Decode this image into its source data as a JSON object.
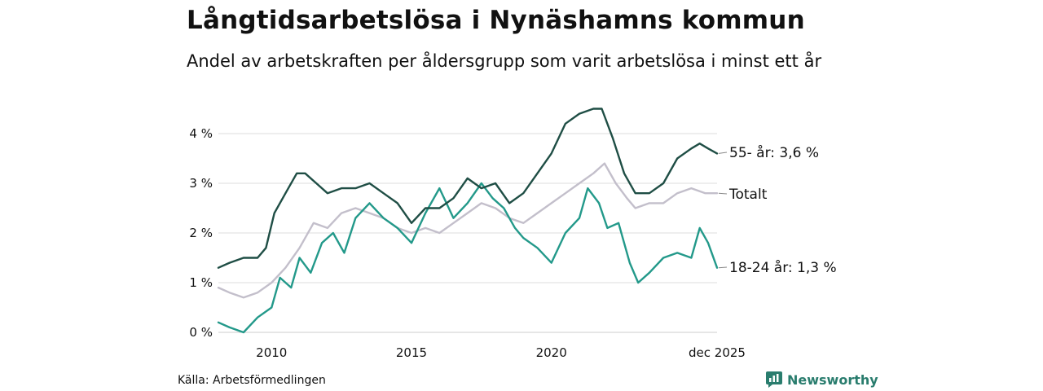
{
  "header": {
    "title": "Långtidsarbetslösa i Nynäshamns kommun",
    "subtitle": "Andel av arbetskraften per åldersgrupp som varit arbetslösa i minst ett år"
  },
  "footer": {
    "source": "Källa: Arbetsförmedlingen",
    "brand": "Newsworthy"
  },
  "colors": {
    "series_55": "#1f4e45",
    "series_total": "#c3bfcb",
    "series_18_24": "#23998a",
    "grid": "#dddddd",
    "brand": "#2a7d6e"
  },
  "chart_data": {
    "type": "line",
    "title": "Långtidsarbetslösa i Nynäshamns kommun",
    "subtitle": "Andel av arbetskraften per åldersgrupp som varit arbetslösa i minst ett år",
    "xlabel": "",
    "ylabel": "",
    "xlim": [
      2008.1,
      2025.92
    ],
    "ylim": [
      0,
      4
    ],
    "y_ticks": [
      0,
      1,
      2,
      3,
      4
    ],
    "y_tick_labels": [
      "0 %",
      "1 %",
      "2 %",
      "3 %",
      "4 %"
    ],
    "x_ticks": [
      2010,
      2015,
      2020,
      2025.92
    ],
    "x_tick_labels": [
      "2010",
      "2015",
      "2020",
      "dec 2025"
    ],
    "grid": true,
    "series": [
      {
        "name": "55- år",
        "end_label": "55- år: 3,6 %",
        "x": [
          2008.1,
          2008.5,
          2009.0,
          2009.5,
          2009.8,
          2010.1,
          2010.5,
          2010.9,
          2011.2,
          2011.6,
          2012.0,
          2012.5,
          2013.0,
          2013.5,
          2014.0,
          2014.5,
          2015.0,
          2015.5,
          2016.0,
          2016.5,
          2017.0,
          2017.5,
          2018.0,
          2018.5,
          2019.0,
          2019.5,
          2020.0,
          2020.5,
          2021.0,
          2021.5,
          2021.8,
          2022.2,
          2022.6,
          2023.0,
          2023.5,
          2024.0,
          2024.5,
          2025.0,
          2025.3,
          2025.6,
          2025.92
        ],
        "values": [
          1.3,
          1.4,
          1.5,
          1.5,
          1.7,
          2.4,
          2.8,
          3.2,
          3.2,
          3.0,
          2.8,
          2.9,
          2.9,
          3.0,
          2.8,
          2.6,
          2.2,
          2.5,
          2.5,
          2.7,
          3.1,
          2.9,
          3.0,
          2.6,
          2.8,
          3.2,
          3.6,
          4.2,
          4.4,
          4.5,
          4.5,
          3.9,
          3.2,
          2.8,
          2.8,
          3.0,
          3.5,
          3.7,
          3.8,
          3.7,
          3.6
        ]
      },
      {
        "name": "Totalt",
        "end_label": "Totalt",
        "x": [
          2008.1,
          2008.5,
          2009.0,
          2009.5,
          2010.0,
          2010.5,
          2011.0,
          2011.5,
          2012.0,
          2012.5,
          2013.0,
          2013.5,
          2014.0,
          2014.5,
          2015.0,
          2015.5,
          2016.0,
          2016.5,
          2017.0,
          2017.5,
          2018.0,
          2018.5,
          2019.0,
          2019.5,
          2020.0,
          2020.5,
          2021.0,
          2021.5,
          2021.9,
          2022.3,
          2022.7,
          2023.0,
          2023.5,
          2024.0,
          2024.5,
          2025.0,
          2025.5,
          2025.92
        ],
        "values": [
          0.9,
          0.8,
          0.7,
          0.8,
          1.0,
          1.3,
          1.7,
          2.2,
          2.1,
          2.4,
          2.5,
          2.4,
          2.3,
          2.1,
          2.0,
          2.1,
          2.0,
          2.2,
          2.4,
          2.6,
          2.5,
          2.3,
          2.2,
          2.4,
          2.6,
          2.8,
          3.0,
          3.2,
          3.4,
          3.0,
          2.7,
          2.5,
          2.6,
          2.6,
          2.8,
          2.9,
          2.8,
          2.8
        ]
      },
      {
        "name": "18-24 år",
        "end_label": "18-24 år: 1,3 %",
        "x": [
          2008.1,
          2008.5,
          2009.0,
          2009.5,
          2010.0,
          2010.3,
          2010.7,
          2011.0,
          2011.4,
          2011.8,
          2012.2,
          2012.6,
          2013.0,
          2013.5,
          2014.0,
          2014.5,
          2015.0,
          2015.5,
          2016.0,
          2016.5,
          2017.0,
          2017.5,
          2017.9,
          2018.3,
          2018.7,
          2019.0,
          2019.5,
          2020.0,
          2020.5,
          2021.0,
          2021.3,
          2021.7,
          2022.0,
          2022.4,
          2022.8,
          2023.1,
          2023.5,
          2024.0,
          2024.5,
          2025.0,
          2025.3,
          2025.6,
          2025.92
        ],
        "values": [
          0.2,
          0.1,
          0.0,
          0.3,
          0.5,
          1.1,
          0.9,
          1.5,
          1.2,
          1.8,
          2.0,
          1.6,
          2.3,
          2.6,
          2.3,
          2.1,
          1.8,
          2.4,
          2.9,
          2.3,
          2.6,
          3.0,
          2.7,
          2.5,
          2.1,
          1.9,
          1.7,
          1.4,
          2.0,
          2.3,
          2.9,
          2.6,
          2.1,
          2.2,
          1.4,
          1.0,
          1.2,
          1.5,
          1.6,
          1.5,
          2.1,
          1.8,
          1.3
        ]
      }
    ]
  }
}
